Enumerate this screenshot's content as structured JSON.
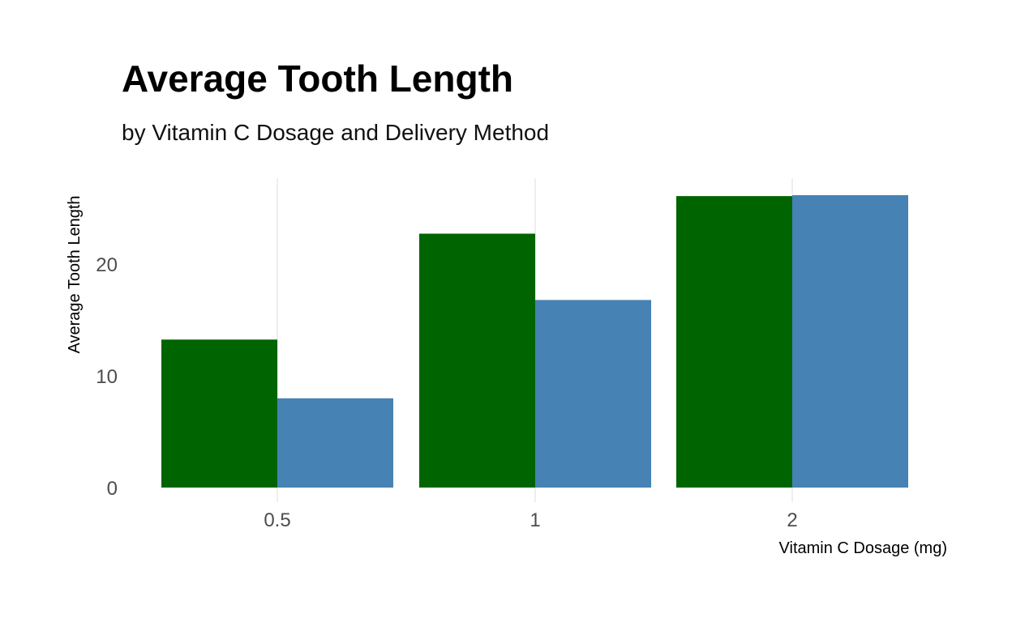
{
  "chart_data": {
    "type": "bar",
    "title": "Average Tooth Length",
    "subtitle": "by Vitamin C Dosage and Delivery Method",
    "xlabel": "Vitamin C Dosage (mg)",
    "ylabel": "Average Tooth Length",
    "categories": [
      "0.5",
      "1",
      "2"
    ],
    "series": [
      {
        "values": [
          13.23,
          22.7,
          26.06
        ],
        "color": "#006400"
      },
      {
        "values": [
          7.98,
          16.77,
          26.14
        ],
        "color": "#4682B4"
      }
    ],
    "yticks": [
      0,
      10,
      20
    ],
    "ylim": [
      0,
      27.5
    ],
    "grid": "vertical major lines only",
    "legend": "none"
  }
}
